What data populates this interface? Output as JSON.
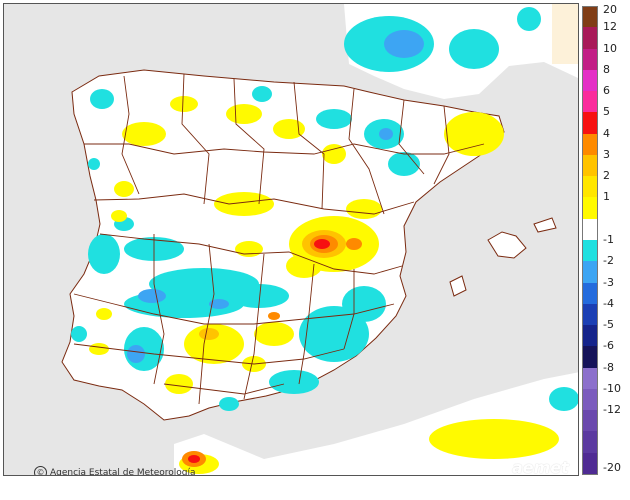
{
  "credit": {
    "symbol": "©",
    "text": "Agencia Estatal de Meteorología"
  },
  "brand": "aemet",
  "legend": {
    "boxes": [
      {
        "color": "#803d16"
      },
      {
        "color": "#a81a58"
      },
      {
        "color": "#c21f86"
      },
      {
        "color": "#e42fc6"
      },
      {
        "color": "#fa2c9c"
      },
      {
        "color": "#f71111"
      },
      {
        "color": "#fe8a00"
      },
      {
        "color": "#ffc300"
      },
      {
        "color": "#ffe600"
      },
      {
        "color": "#fffa00"
      },
      {
        "color": "#ffffff"
      },
      {
        "color": "#20e0e0"
      },
      {
        "color": "#3da5f3"
      },
      {
        "color": "#246bdd"
      },
      {
        "color": "#1b3fb4"
      },
      {
        "color": "#15248b"
      },
      {
        "color": "#16145a"
      },
      {
        "color": "#8c70cc"
      },
      {
        "color": "#7b5cbd"
      },
      {
        "color": "#6a49ad"
      },
      {
        "color": "#5b3aa0"
      },
      {
        "color": "#4f2b93"
      }
    ],
    "labels": [
      "20",
      "12",
      "10",
      "8",
      "6",
      "5",
      "4",
      "3",
      "2",
      "1",
      "-1",
      "-2",
      "-3",
      "-4",
      "-5",
      "-6",
      "-8",
      "-10",
      "-12",
      "-20"
    ]
  }
}
